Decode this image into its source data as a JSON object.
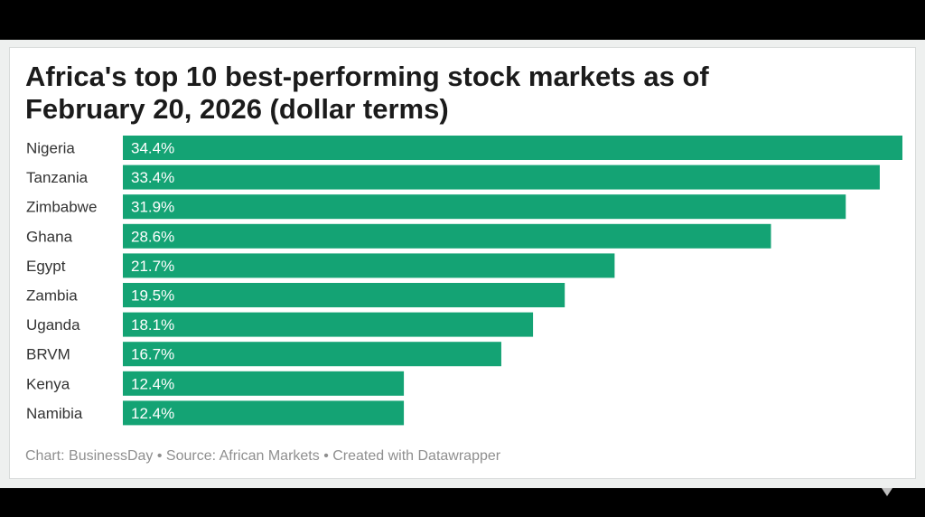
{
  "colors": {
    "bar": "#14a374",
    "title": "#1b1b1b",
    "footer": "#8f8f8f",
    "card_background": "#ffffff"
  },
  "chart_data": {
    "type": "bar",
    "orientation": "horizontal",
    "title_lines": [
      "Africa's top 10 best-performing stock markets as of",
      "February 20, 2026 (dollar terms)"
    ],
    "categories": [
      "Nigeria",
      "Tanzania",
      "Zimbabwe",
      "Ghana",
      "Egypt",
      "Zambia",
      "Uganda",
      "BRVM",
      "Kenya",
      "Namibia"
    ],
    "values": [
      34.4,
      33.4,
      31.9,
      28.6,
      21.7,
      19.5,
      18.1,
      16.7,
      12.4,
      12.4
    ],
    "value_labels": [
      "34.4%",
      "33.4%",
      "31.9%",
      "28.6%",
      "21.7%",
      "19.5%",
      "18.1%",
      "16.7%",
      "12.4%",
      "12.4%"
    ],
    "unit": "%",
    "xlim": [
      0,
      34.4
    ],
    "grid": false,
    "legend": "none"
  },
  "footer": {
    "chart_credit": "Chart: BusinessDay",
    "source": "• Source: African Markets",
    "created_with": "• Created with Datawrapper"
  }
}
